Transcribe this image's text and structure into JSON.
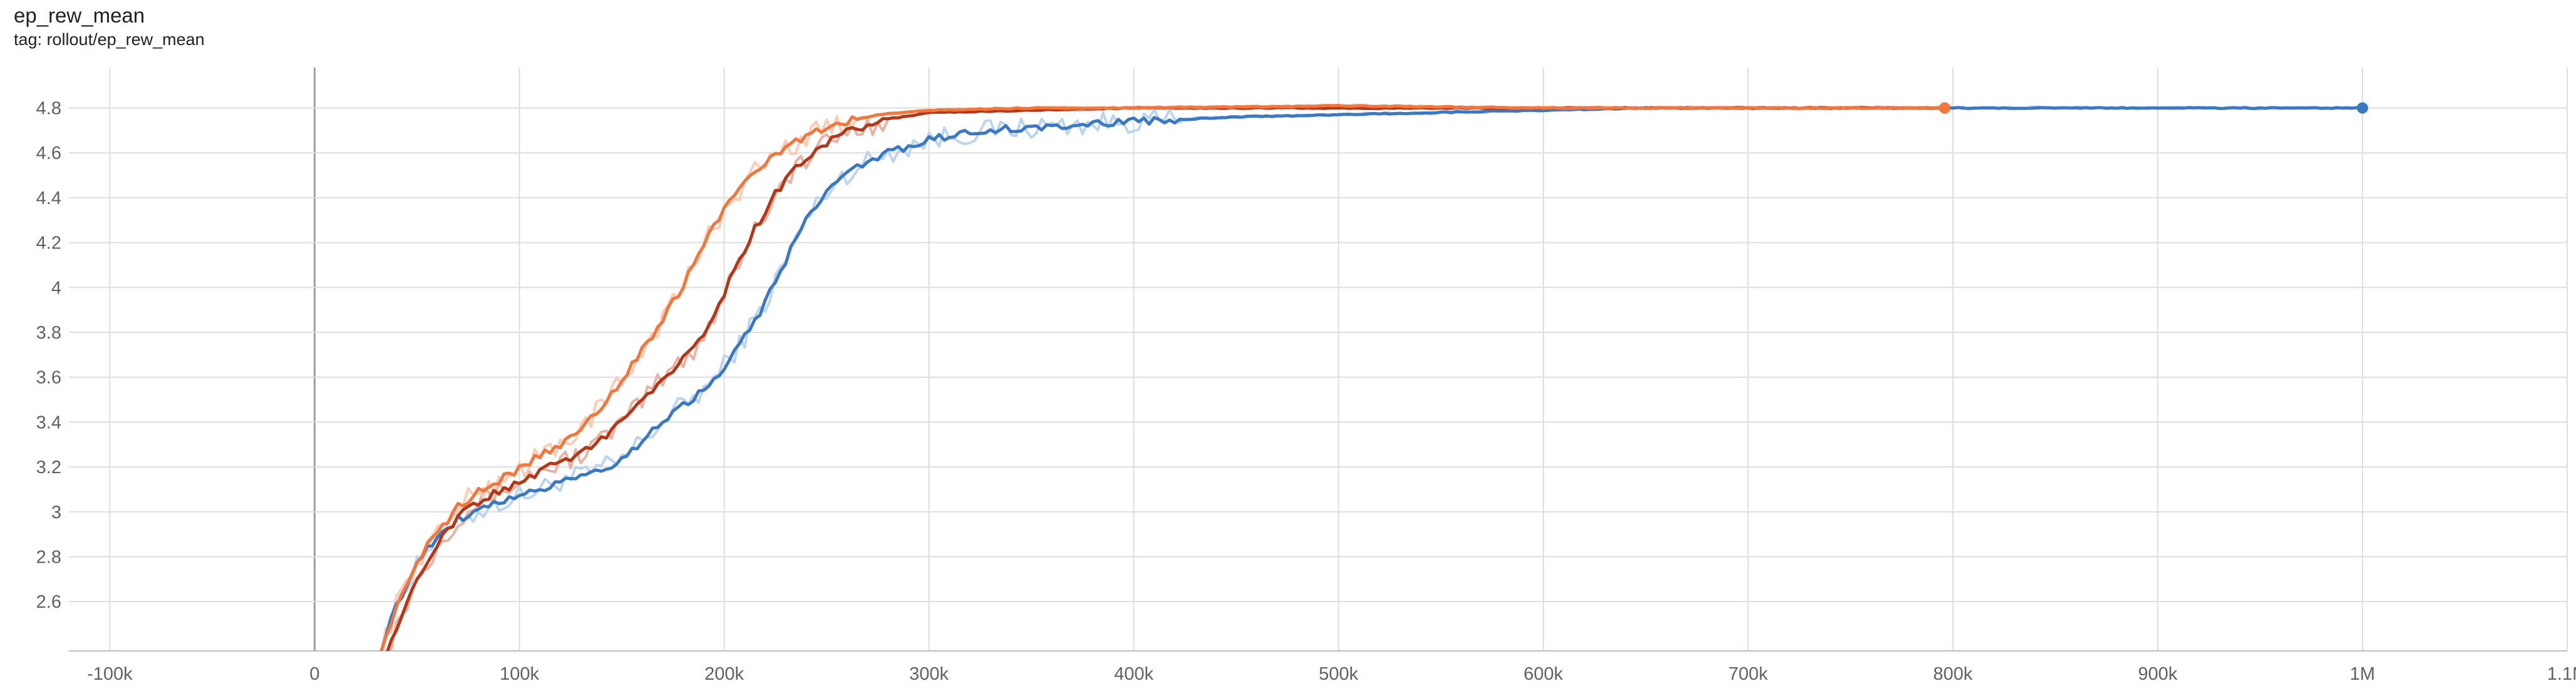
{
  "header": {
    "title": "ep_rew_mean",
    "subtitle": "tag: rollout/ep_rew_mean"
  },
  "chart_data": {
    "type": "line",
    "title": "ep_rew_mean",
    "subtitle": "tag: rollout/ep_rew_mean",
    "xlim": [
      -120000,
      1100000
    ],
    "ylim": [
      2.38,
      4.98
    ],
    "x_ticks": [
      -100000,
      0,
      100000,
      200000,
      300000,
      400000,
      500000,
      600000,
      700000,
      800000,
      900000,
      1000000,
      1100000
    ],
    "x_tick_labels": [
      "-100k",
      "0",
      "100k",
      "200k",
      "300k",
      "400k",
      "500k",
      "600k",
      "700k",
      "800k",
      "900k",
      "1M",
      "1.1M"
    ],
    "y_ticks": [
      2.6,
      2.8,
      3,
      3.2,
      3.4,
      3.6,
      3.8,
      4,
      4.2,
      4.4,
      4.6,
      4.8
    ],
    "y_tick_labels": [
      "2.6",
      "2.8",
      "3",
      "3.2",
      "3.4",
      "3.6",
      "3.8",
      "4",
      "4.2",
      "4.4",
      "4.6",
      "4.8"
    ],
    "grid": true,
    "series": [
      {
        "color": "#3a78c3",
        "raw_color": "#bcd4ee",
        "end_marker": true,
        "points": [
          [
            32000,
            2.38
          ],
          [
            40000,
            2.58
          ],
          [
            50000,
            2.78
          ],
          [
            60000,
            2.89
          ],
          [
            70000,
            2.97
          ],
          [
            80000,
            3.0
          ],
          [
            90000,
            3.04
          ],
          [
            100000,
            3.07
          ],
          [
            110000,
            3.1
          ],
          [
            120000,
            3.14
          ],
          [
            130000,
            3.16
          ],
          [
            140000,
            3.19
          ],
          [
            150000,
            3.23
          ],
          [
            160000,
            3.32
          ],
          [
            170000,
            3.4
          ],
          [
            180000,
            3.48
          ],
          [
            190000,
            3.54
          ],
          [
            200000,
            3.65
          ],
          [
            210000,
            3.78
          ],
          [
            220000,
            3.93
          ],
          [
            230000,
            4.12
          ],
          [
            240000,
            4.3
          ],
          [
            250000,
            4.43
          ],
          [
            260000,
            4.51
          ],
          [
            270000,
            4.56
          ],
          [
            280000,
            4.6
          ],
          [
            300000,
            4.66
          ],
          [
            330000,
            4.7
          ],
          [
            360000,
            4.72
          ],
          [
            400000,
            4.74
          ],
          [
            450000,
            4.76
          ],
          [
            500000,
            4.77
          ],
          [
            550000,
            4.78
          ],
          [
            600000,
            4.79
          ],
          [
            650000,
            4.8
          ],
          [
            700000,
            4.8
          ],
          [
            800000,
            4.8
          ],
          [
            900000,
            4.8
          ],
          [
            1000000,
            4.8
          ]
        ]
      },
      {
        "color": "#b5371a",
        "raw_color": "#e8b2a3",
        "end_marker": false,
        "points": [
          [
            35000,
            2.38
          ],
          [
            45000,
            2.6
          ],
          [
            55000,
            2.78
          ],
          [
            65000,
            2.92
          ],
          [
            75000,
            3.02
          ],
          [
            85000,
            3.07
          ],
          [
            95000,
            3.11
          ],
          [
            105000,
            3.16
          ],
          [
            115000,
            3.2
          ],
          [
            125000,
            3.24
          ],
          [
            135000,
            3.28
          ],
          [
            145000,
            3.36
          ],
          [
            155000,
            3.44
          ],
          [
            165000,
            3.55
          ],
          [
            175000,
            3.64
          ],
          [
            185000,
            3.72
          ],
          [
            195000,
            3.87
          ],
          [
            205000,
            4.08
          ],
          [
            215000,
            4.26
          ],
          [
            225000,
            4.42
          ],
          [
            235000,
            4.53
          ],
          [
            245000,
            4.61
          ],
          [
            255000,
            4.67
          ],
          [
            265000,
            4.71
          ],
          [
            280000,
            4.75
          ],
          [
            300000,
            4.78
          ],
          [
            350000,
            4.79
          ],
          [
            400000,
            4.8
          ],
          [
            500000,
            4.8
          ],
          [
            600000,
            4.8
          ],
          [
            700000,
            4.8
          ],
          [
            796000,
            4.8
          ]
        ]
      },
      {
        "color": "#f2773f",
        "raw_color": "#fbcdb7",
        "end_marker": true,
        "points": [
          [
            32000,
            2.38
          ],
          [
            40000,
            2.58
          ],
          [
            50000,
            2.78
          ],
          [
            60000,
            2.91
          ],
          [
            70000,
            3.02
          ],
          [
            80000,
            3.09
          ],
          [
            90000,
            3.14
          ],
          [
            100000,
            3.19
          ],
          [
            110000,
            3.25
          ],
          [
            120000,
            3.3
          ],
          [
            130000,
            3.37
          ],
          [
            140000,
            3.47
          ],
          [
            150000,
            3.58
          ],
          [
            160000,
            3.72
          ],
          [
            170000,
            3.86
          ],
          [
            180000,
            4.01
          ],
          [
            190000,
            4.19
          ],
          [
            200000,
            4.35
          ],
          [
            210000,
            4.47
          ],
          [
            220000,
            4.56
          ],
          [
            230000,
            4.62
          ],
          [
            240000,
            4.67
          ],
          [
            250000,
            4.71
          ],
          [
            260000,
            4.74
          ],
          [
            275000,
            4.77
          ],
          [
            300000,
            4.79
          ],
          [
            350000,
            4.8
          ],
          [
            400000,
            4.8
          ],
          [
            500000,
            4.81
          ],
          [
            600000,
            4.8
          ],
          [
            700000,
            4.8
          ],
          [
            796000,
            4.8
          ]
        ]
      }
    ]
  }
}
